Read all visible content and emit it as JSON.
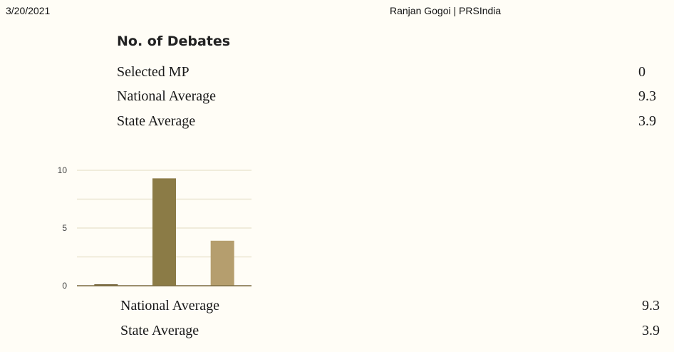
{
  "header": {
    "date": "3/20/2021",
    "title": "Ranjan Gogoi | PRSIndia"
  },
  "section": {
    "title": "No. of Debates",
    "rows": [
      {
        "label": "Selected MP",
        "value": "0"
      },
      {
        "label": "National Average",
        "value": "9.3"
      },
      {
        "label": "State Average",
        "value": "3.9"
      }
    ]
  },
  "legend_rows": [
    {
      "label": "National Average",
      "value": "9.3"
    },
    {
      "label": "State Average",
      "value": "3.9"
    }
  ],
  "chart_data": {
    "type": "bar",
    "title": "",
    "categories": [
      "Selected MP",
      "National Average",
      "State Average"
    ],
    "values": [
      0,
      9.3,
      3.9
    ],
    "colors": [
      "#6b5a2e",
      "#8b7b46",
      "#b59e6e"
    ],
    "ylim": [
      0,
      10
    ],
    "yticks": [
      0,
      5,
      10
    ],
    "grid": true,
    "xlabel": "",
    "ylabel": ""
  }
}
